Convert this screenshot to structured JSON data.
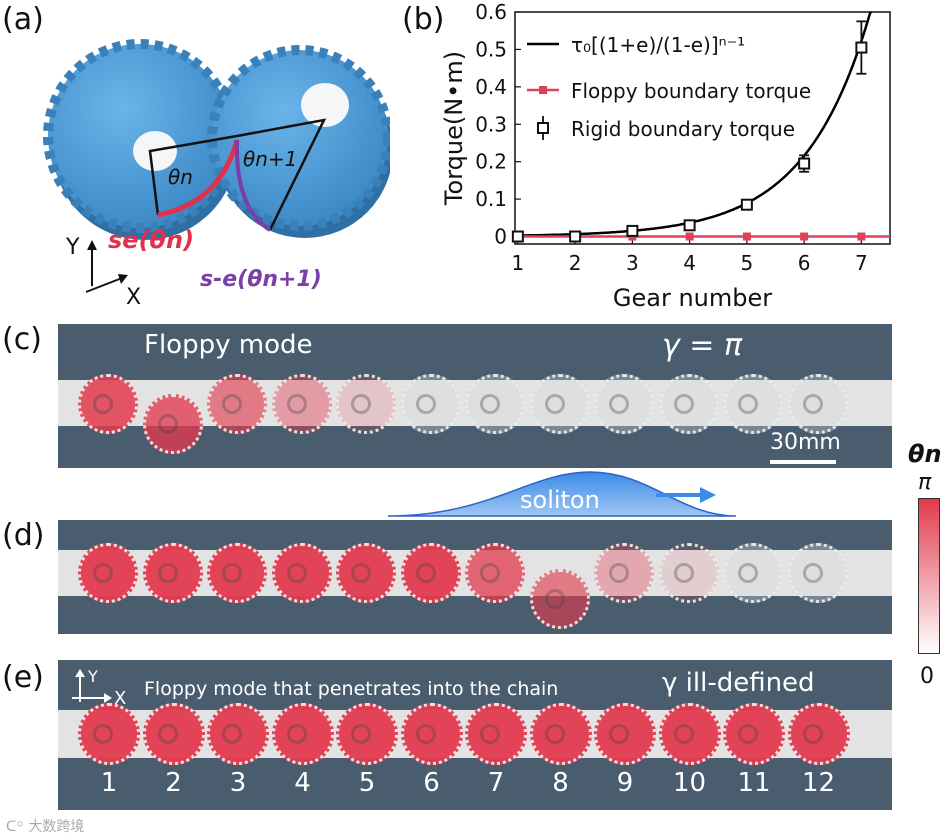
{
  "panels": {
    "a": {
      "label": "(a)",
      "theta_n": "θn",
      "theta_n1": "θn+1",
      "s_e": "se(θn)",
      "s_minus_e": "s-e(θn+1)",
      "axis_y": "Y",
      "axis_x": "X",
      "colors": {
        "gear": "#4a98d6",
        "gear_dark": "#2f6fa3",
        "arc_red": "#e0304a",
        "arc_purple": "#7b3fa8"
      }
    },
    "b": {
      "label": "(b)"
    },
    "c": {
      "label": "(c)",
      "title": "Floppy mode",
      "gamma": "γ = π",
      "scale": "30mm"
    },
    "d": {
      "label": "(d)",
      "soliton": "soliton"
    },
    "e": {
      "label": "(e)",
      "title": "Floppy mode that penetrates into the chain",
      "gamma": "γ ill-defined",
      "axis_y": "Y",
      "axis_x": "X",
      "numbers": [
        "1",
        "2",
        "3",
        "4",
        "5",
        "6",
        "7",
        "8",
        "9",
        "10",
        "11",
        "12"
      ]
    }
  },
  "colorbar": {
    "title": "θn",
    "max_label": "π",
    "min_label": "0",
    "color_high": "#e23a4e",
    "color_low": "#ffffff"
  },
  "watermark": "大数跨境",
  "chart_data": {
    "type": "line",
    "xlabel": "Gear number",
    "ylabel": "Torque(N•m)",
    "xlim": [
      0.95,
      7.5
    ],
    "ylim": [
      -0.02,
      0.6
    ],
    "xticks": [
      1,
      2,
      3,
      4,
      5,
      6,
      7
    ],
    "yticks": [
      0,
      0.1,
      0.2,
      0.3,
      0.4,
      0.5,
      0.6
    ],
    "ytick_labels": [
      "0",
      "0.1",
      "0.2",
      "0.3",
      "0.4",
      "0.5",
      "0.6"
    ],
    "legend": [
      {
        "label": "τ₀[(1+e)/(1-e)]ⁿ⁻¹",
        "style": "line",
        "color": "#000000"
      },
      {
        "label": "Floppy boundary torque",
        "style": "line-square",
        "color": "#e0405a"
      },
      {
        "label": "Rigid boundary torque",
        "style": "errorbar-square",
        "color": "#000000"
      }
    ],
    "series": [
      {
        "name": "fit",
        "tau0": 0.0026,
        "ratio": 2.42
      },
      {
        "name": "Floppy boundary torque",
        "x": [
          1,
          2,
          3,
          4,
          5,
          6,
          7
        ],
        "y": [
          0,
          0,
          0,
          0,
          0,
          0,
          0
        ]
      },
      {
        "name": "Rigid boundary torque",
        "x": [
          1,
          2,
          3,
          4,
          5,
          6,
          7
        ],
        "y": [
          0,
          0,
          0.015,
          0.03,
          0.085,
          0.195,
          0.505
        ],
        "err": [
          0.003,
          0.003,
          0.006,
          0.006,
          0.01,
          0.022,
          0.07
        ]
      }
    ]
  },
  "strips": {
    "c": {
      "alphas": [
        0.85,
        0.78,
        0.62,
        0.42,
        0.18,
        0,
        0,
        0,
        0,
        0,
        0,
        0
      ],
      "offsets": [
        0,
        1,
        0,
        0,
        0,
        0,
        0,
        0,
        0,
        0,
        0,
        0
      ]
    },
    "d": {
      "alphas": [
        0.95,
        0.95,
        0.95,
        0.95,
        0.95,
        0.95,
        0.75,
        0.62,
        0.35,
        0.12,
        0,
        0
      ],
      "offsets": [
        0,
        0,
        0,
        0,
        0,
        0,
        0,
        1,
        0,
        0,
        0,
        0
      ]
    },
    "e": {
      "alphas": [
        0.95,
        0.95,
        0.95,
        0.95,
        0.95,
        0.95,
        0.95,
        0.95,
        0.95,
        0.95,
        0.95,
        0.95
      ],
      "offsets": [
        0,
        0,
        0,
        0,
        0,
        0,
        0,
        0,
        0,
        0,
        0,
        0
      ]
    }
  }
}
